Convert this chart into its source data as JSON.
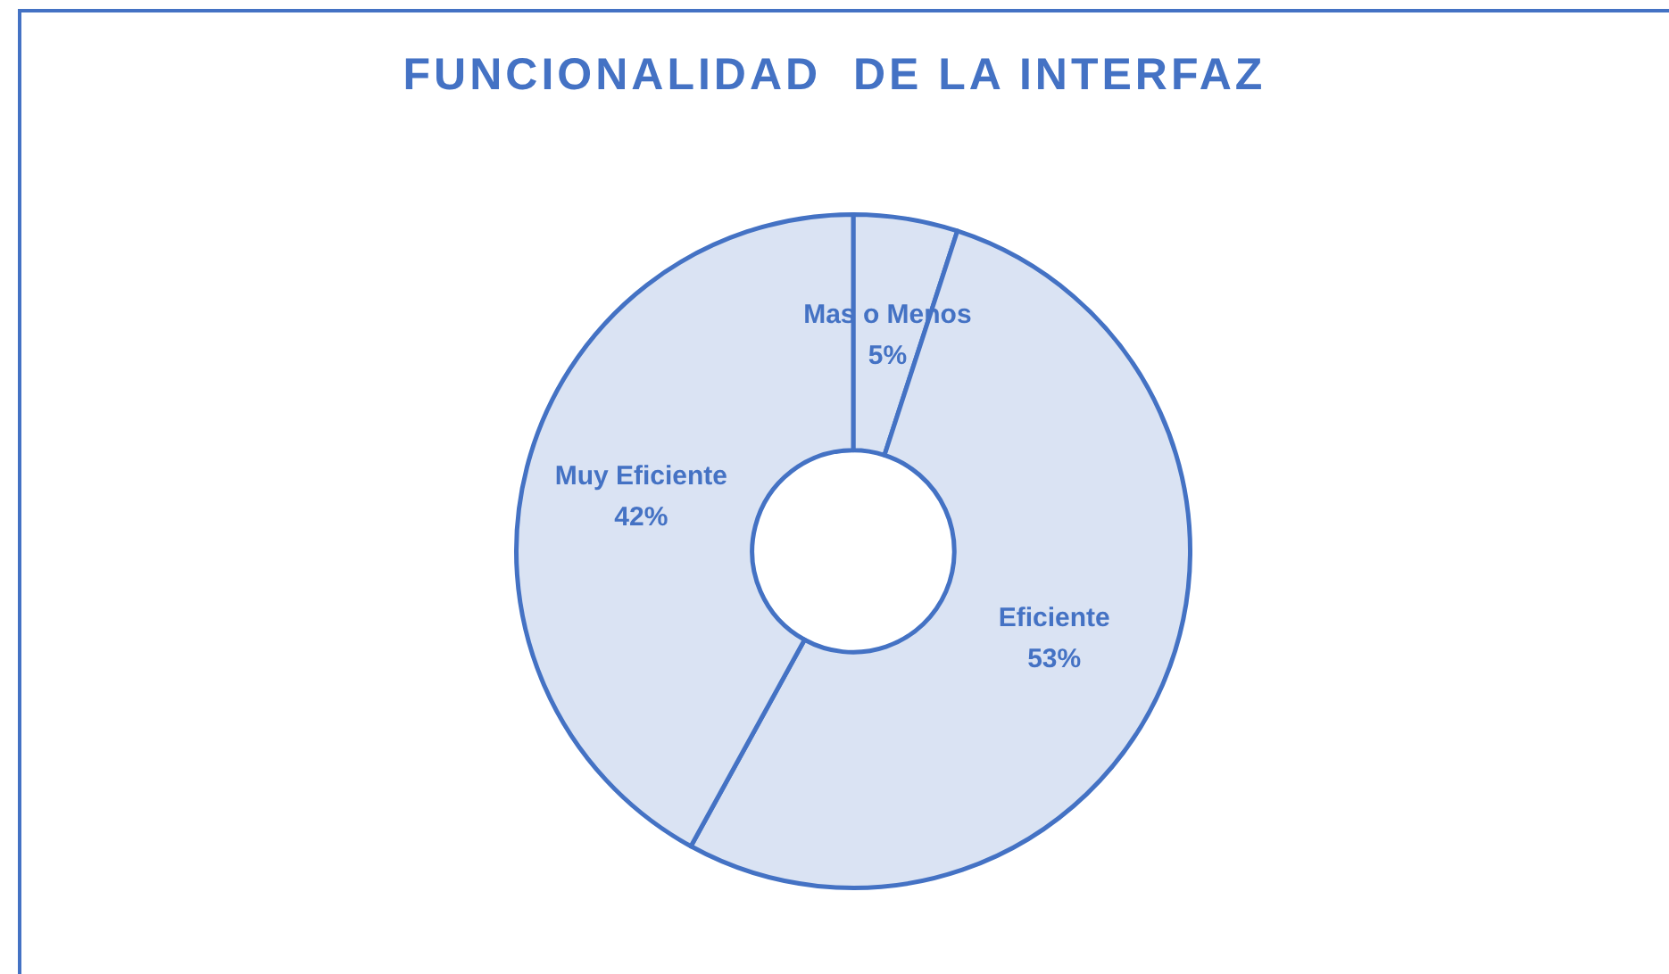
{
  "chart_data": {
    "type": "donut",
    "title": "FUNCIONALIDAD  DE LA INTERFAZ",
    "categories": [
      "Mas o Menos",
      "Eficiente",
      "Muy Eficiente"
    ],
    "values": [
      5,
      53,
      42
    ],
    "value_labels": [
      "5%",
      "53%",
      "42%"
    ],
    "colors": [
      "#dae3f3",
      "#dae3f3",
      "#dae3f3"
    ],
    "legend": false
  }
}
